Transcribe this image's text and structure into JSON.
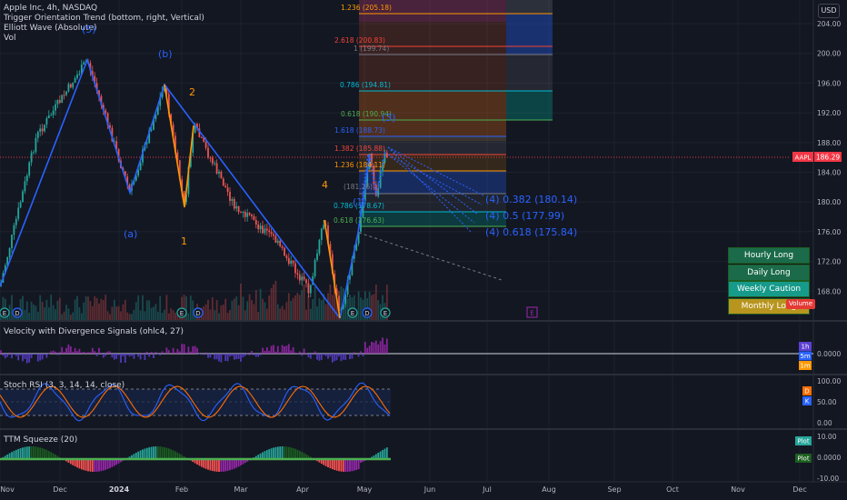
{
  "header": {
    "symbol_line": "Apple Inc, 4h, NASDAQ",
    "indicators": [
      "Trigger Orientation Trend (bottom, right, Vertical)",
      "Elliott Wave (Absolute)",
      "Vol"
    ],
    "currency_button": "USD"
  },
  "price_axis": {
    "ticks": [
      "204.00",
      "200.00",
      "196.00",
      "192.00",
      "188.00",
      "184.00",
      "180.00",
      "176.00",
      "172.00",
      "168.00"
    ],
    "last_price_symbol": "AAPL",
    "last_price": "186.29"
  },
  "fib_levels": [
    {
      "label": "1.236 (205.18)",
      "color": "#ff9800"
    },
    {
      "label": "2.618 (200.83)",
      "color": "#f44336"
    },
    {
      "label": "1 (199.74)",
      "color": "#787b86"
    },
    {
      "label": "0.786 (194.81)",
      "color": "#00bcd4"
    },
    {
      "label": "0.618 (190.94)",
      "color": "#4caf50"
    },
    {
      "label": "1.618 (188.73)",
      "color": "#2962ff"
    },
    {
      "label": "1.382 (185.88)",
      "color": "#f44336"
    },
    {
      "label": "1.236 (184.11)",
      "color": "#ff9800"
    },
    {
      "label": "(181.26)",
      "color": "#787b86"
    },
    {
      "label": "0.786 (178.67)",
      "color": "#00bcd4"
    },
    {
      "label": "0.618 (176.63)",
      "color": "#4caf50"
    }
  ],
  "wave_labels": {
    "w5": "(5)",
    "wa": "(a)",
    "wb": "(b)",
    "w1": "1",
    "w2": "2",
    "w3": "(3)",
    "w4": "4",
    "w4p": "(4)",
    "w1p": "(1)"
  },
  "projections": [
    "(4) 0.382 (180.14)",
    "(4) 0.5 (177.99)",
    "(4) 0.618 (175.84)"
  ],
  "bias_labels": [
    {
      "label": "Hourly Long",
      "color": "#1b6b4a"
    },
    {
      "label": "Daily Long",
      "color": "#1b6b4a"
    },
    {
      "label": "Weekly Caution Long",
      "color": "#169a8a"
    },
    {
      "label": "Monthly Long",
      "color": "#b8951e"
    }
  ],
  "volume_badge": "Volume",
  "event_markers": [
    "E",
    "D",
    "E",
    "D",
    "E",
    "D",
    "E"
  ],
  "velocity": {
    "title": "Velocity with Divergence Signals (ohlc4, 27)",
    "value": "0.0000",
    "tags": [
      {
        "label": "1h",
        "color": "#5d3fd3"
      },
      {
        "label": "5m",
        "color": "#2962ff"
      },
      {
        "label": "1m",
        "color": "#ff9800"
      }
    ]
  },
  "stoch": {
    "title": "Stoch RSI (3, 3, 14, 14, close)",
    "ticks": [
      "100.00",
      "50.00",
      "0.00"
    ],
    "tags": [
      {
        "label": "D",
        "color": "#ff6d00"
      },
      {
        "label": "K",
        "color": "#2962ff"
      }
    ]
  },
  "ttm": {
    "title": "TTM Squeeze (20)",
    "ticks": [
      "10.00",
      "0.0000",
      "-10.00"
    ],
    "tags": [
      {
        "label": "Plot",
        "color": "#26a69a"
      },
      {
        "label": "Plot",
        "color": "#1b5e20"
      }
    ]
  },
  "time_axis": [
    {
      "label": "Nov",
      "bold": false
    },
    {
      "label": "Dec",
      "bold": false
    },
    {
      "label": "2024",
      "bold": true
    },
    {
      "label": "Feb",
      "bold": false
    },
    {
      "label": "Mar",
      "bold": false
    },
    {
      "label": "Apr",
      "bold": false
    },
    {
      "label": "May",
      "bold": false
    },
    {
      "label": "Jun",
      "bold": false
    },
    {
      "label": "Jul",
      "bold": false
    },
    {
      "label": "Aug",
      "bold": false
    },
    {
      "label": "Sep",
      "bold": false
    },
    {
      "label": "Oct",
      "bold": false
    },
    {
      "label": "Nov",
      "bold": false
    },
    {
      "label": "Dec",
      "bold": false
    }
  ]
}
